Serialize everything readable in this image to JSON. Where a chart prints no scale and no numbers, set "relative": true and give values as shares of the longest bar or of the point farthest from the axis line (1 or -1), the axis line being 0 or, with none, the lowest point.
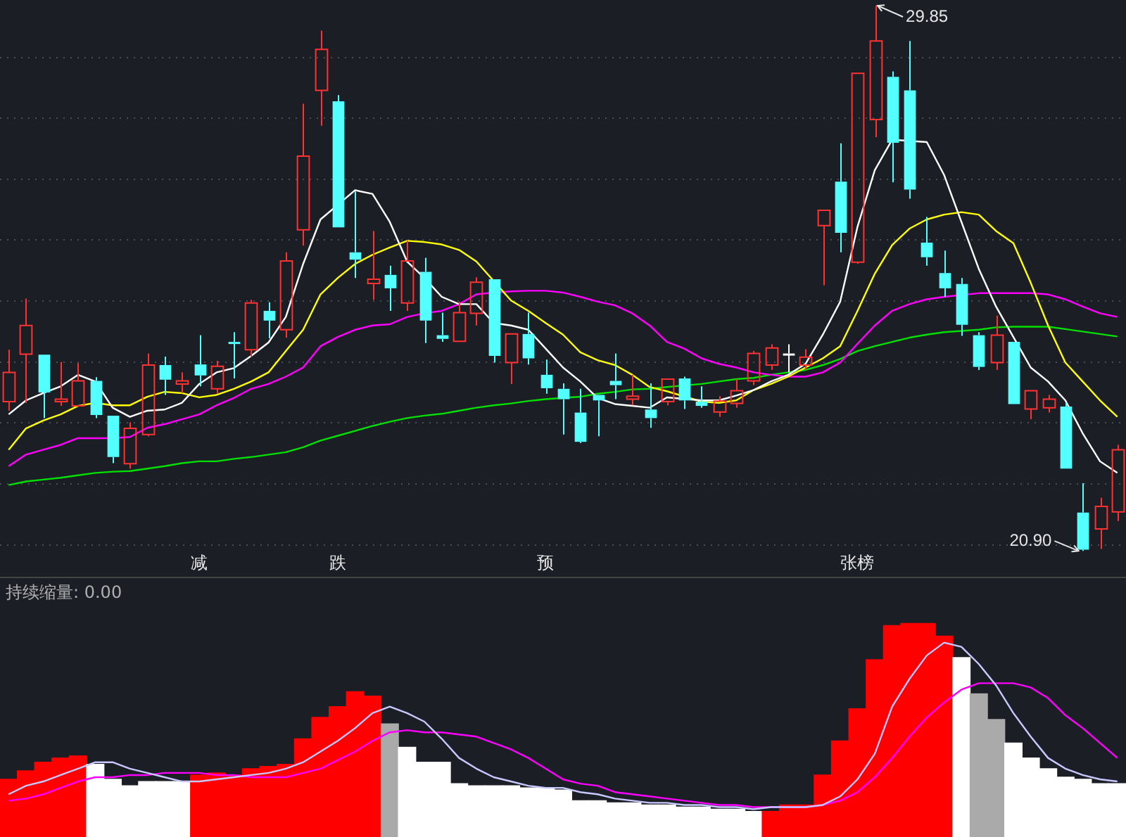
{
  "chart_data": [
    {
      "type": "candlestick",
      "categories": [
        null,
        null,
        null,
        null,
        null,
        null,
        null,
        null,
        null,
        null,
        null,
        "减",
        null,
        null,
        null,
        null,
        null,
        null,
        null,
        "跌",
        null,
        null,
        null,
        null,
        null,
        null,
        null,
        null,
        null,
        null,
        null,
        "预",
        null,
        null,
        null,
        null,
        null,
        null,
        null,
        null,
        null,
        null,
        null,
        null,
        null,
        null,
        null,
        null,
        null,
        "张榜",
        null,
        null,
        null,
        null,
        null,
        null,
        null,
        null,
        null,
        null,
        null,
        null,
        null,
        null,
        null
      ],
      "ohlc": [
        [
          23.35,
          24.2,
          23.2,
          23.83
        ],
        [
          24.13,
          25.04,
          23.33,
          24.6
        ],
        [
          24.12,
          24.12,
          23.08,
          23.5
        ],
        [
          23.35,
          24.0,
          23.28,
          23.39
        ],
        [
          23.28,
          23.98,
          23.28,
          23.69
        ],
        [
          23.69,
          23.75,
          23.08,
          23.13
        ],
        [
          23.12,
          23.12,
          22.34,
          22.44
        ],
        [
          22.33,
          23.01,
          22.25,
          22.91
        ],
        [
          22.81,
          24.14,
          22.78,
          23.95
        ],
        [
          23.95,
          24.09,
          23.46,
          23.71
        ],
        [
          23.64,
          23.83,
          23.49,
          23.69
        ],
        [
          23.96,
          24.44,
          23.6,
          23.78
        ],
        [
          23.56,
          24.02,
          23.48,
          23.93
        ],
        [
          24.33,
          24.49,
          23.73,
          24.31
        ],
        [
          24.2,
          25.02,
          24.09,
          24.97
        ],
        [
          24.84,
          24.98,
          24.39,
          24.68
        ],
        [
          24.53,
          25.8,
          24.4,
          25.66
        ],
        [
          26.17,
          28.24,
          25.91,
          27.38
        ],
        [
          28.46,
          29.44,
          27.88,
          29.13
        ],
        [
          28.28,
          28.38,
          26.21,
          26.21
        ],
        [
          25.8,
          26.8,
          25.38,
          25.68
        ],
        [
          25.29,
          26.15,
          25.02,
          25.36
        ],
        [
          25.43,
          25.58,
          24.84,
          25.21
        ],
        [
          24.97,
          25.99,
          24.84,
          25.66
        ],
        [
          25.48,
          25.71,
          24.31,
          24.68
        ],
        [
          24.44,
          24.81,
          24.33,
          24.38
        ],
        [
          24.34,
          24.99,
          24.34,
          24.81
        ],
        [
          24.8,
          25.39,
          24.6,
          25.31
        ],
        [
          25.36,
          25.36,
          23.99,
          24.1
        ],
        [
          23.99,
          24.46,
          23.64,
          24.46
        ],
        [
          24.46,
          24.81,
          23.96,
          24.06
        ],
        [
          23.79,
          24.04,
          23.48,
          23.57
        ],
        [
          23.56,
          23.65,
          22.81,
          23.39
        ],
        [
          23.17,
          23.56,
          22.67,
          22.69
        ],
        [
          23.46,
          23.46,
          22.78,
          23.37
        ],
        [
          23.69,
          24.14,
          23.39,
          23.62
        ],
        [
          23.39,
          23.79,
          23.29,
          23.44
        ],
        [
          23.22,
          23.65,
          22.92,
          23.08
        ],
        [
          23.35,
          23.72,
          23.29,
          23.72
        ],
        [
          23.73,
          23.76,
          23.23,
          23.37
        ],
        [
          23.35,
          23.6,
          23.25,
          23.28
        ],
        [
          23.18,
          23.44,
          23.1,
          23.36
        ],
        [
          23.32,
          23.72,
          23.25,
          23.53
        ],
        [
          23.69,
          24.18,
          23.62,
          24.14
        ],
        [
          23.95,
          24.29,
          23.87,
          24.23
        ],
        [
          24.14,
          24.29,
          23.83,
          24.13
        ],
        [
          23.95,
          24.21,
          23.87,
          24.08
        ],
        [
          26.24,
          26.49,
          25.26,
          26.49
        ],
        [
          26.96,
          27.59,
          25.8,
          26.12
        ],
        [
          25.64,
          28.74,
          25.61,
          28.74
        ],
        [
          27.98,
          29.85,
          27.69,
          29.27
        ],
        [
          28.68,
          28.77,
          26.95,
          27.6
        ],
        [
          28.46,
          29.27,
          26.68,
          26.83
        ],
        [
          25.96,
          26.38,
          25.58,
          25.72
        ],
        [
          25.46,
          25.83,
          25.07,
          25.21
        ],
        [
          25.28,
          25.38,
          24.43,
          24.61
        ],
        [
          24.44,
          24.49,
          23.87,
          23.92
        ],
        [
          23.99,
          24.76,
          23.87,
          24.44
        ],
        [
          24.33,
          24.33,
          23.31,
          23.31
        ],
        [
          23.23,
          23.53,
          23.06,
          23.53
        ],
        [
          23.25,
          23.46,
          23.17,
          23.39
        ],
        [
          23.27,
          23.33,
          22.25,
          22.25
        ],
        [
          21.53,
          22.01,
          20.9,
          20.92
        ],
        [
          21.26,
          21.77,
          20.93,
          21.63
        ],
        [
          21.54,
          22.64,
          21.39,
          22.56
        ]
      ],
      "colors": [
        "#ff3232",
        "#ff3232",
        "#54ffff",
        "#ff3232",
        "#ff3232",
        "#54ffff",
        "#54ffff",
        "#ff3232",
        "#ff3232",
        "#54ffff",
        "#ff3232",
        "#54ffff",
        "#ff3232",
        "#54ffff",
        "#ff3232",
        "#54ffff",
        "#ff3232",
        "#ff3232",
        "#ff3232",
        "#54ffff",
        "#54ffff",
        "#ff3232",
        "#54ffff",
        "#ff3232",
        "#54ffff",
        "#54ffff",
        "#ff3232",
        "#ff3232",
        "#54ffff",
        "#ff3232",
        "#54ffff",
        "#54ffff",
        "#54ffff",
        "#54ffff",
        "#54ffff",
        "#54ffff",
        "#ff3232",
        "#54ffff",
        "#ff3232",
        "#54ffff",
        "#54ffff",
        "#ff3232",
        "#ff3232",
        "#ff3232",
        "#ff3232",
        "#ffffff",
        "#ff3232",
        "#ff3232",
        "#54ffff",
        "#ff3232",
        "#ff3232",
        "#54ffff",
        "#54ffff",
        "#54ffff",
        "#54ffff",
        "#54ffff",
        "#54ffff",
        "#ff3232",
        "#54ffff",
        "#ff3232",
        "#ff3232",
        "#54ffff",
        "#54ffff",
        "#ff3232",
        "#ff3232"
      ],
      "series": [
        {
          "type": "line",
          "color": "#ffffff",
          "values": [
            23.14,
            23.37,
            23.49,
            23.6,
            23.79,
            23.68,
            23.25,
            23.1,
            23.2,
            23.22,
            23.33,
            23.64,
            23.83,
            23.9,
            24.1,
            24.32,
            24.74,
            25.61,
            26.34,
            null,
            26.82,
            26.76,
            26.3,
            25.65,
            25.38,
            25.07,
            24.95,
            24.95,
            24.64,
            24.6,
            24.53,
            24.22,
            23.91,
            23.68,
            23.41,
            23.31,
            23.28,
            23.25,
            23.42,
            null,
            23.37,
            23.37,
            23.45,
            23.54,
            23.68,
            23.79,
            23.97,
            24.45,
            24.99,
            26.22,
            27.15,
            27.65,
            null,
            27.61,
            27.07,
            26.3,
            25.53,
            24.91,
            null,
            23.91,
            23.68,
            23.37,
            22.83,
            22.37,
            22.18
          ]
        },
        {
          "type": "line",
          "color": "#ffff00",
          "values": [
            22.56,
            22.91,
            23.04,
            23.14,
            23.28,
            23.33,
            23.29,
            23.29,
            23.43,
            23.51,
            23.49,
            23.42,
            23.46,
            23.56,
            23.68,
            23.83,
            24.18,
            24.53,
            25.11,
            25.38,
            25.61,
            25.76,
            25.88,
            25.99,
            25.97,
            25.93,
            25.84,
            25.65,
            null,
            25.01,
            24.84,
            24.64,
            24.45,
            24.16,
            24.03,
            23.95,
            23.79,
            23.59,
            23.52,
            null,
            23.35,
            23.33,
            23.37,
            23.54,
            23.64,
            23.76,
            23.91,
            24.06,
            24.26,
            24.84,
            25.45,
            25.92,
            26.19,
            26.34,
            26.42,
            26.46,
            26.42,
            26.15,
            25.95,
            25.3,
            24.6,
            23.99,
            23.68,
            23.37,
            23.1
          ]
        },
        {
          "type": "line",
          "color": "#ff00ff",
          "values": [
            22.29,
            22.48,
            22.56,
            22.64,
            22.75,
            22.75,
            22.75,
            22.77,
            22.92,
            22.98,
            23.06,
            23.14,
            23.29,
            23.41,
            23.56,
            23.64,
            23.76,
            23.91,
            24.26,
            24.41,
            24.53,
            24.6,
            24.62,
            24.74,
            24.8,
            24.84,
            24.95,
            25.11,
            25.14,
            25.16,
            25.17,
            25.17,
            25.14,
            25.07,
            24.99,
            24.93,
            24.8,
            24.6,
            24.33,
            24.22,
            24.06,
            23.97,
            23.91,
            23.83,
            23.79,
            23.76,
            23.76,
            23.83,
            23.99,
            24.3,
            24.6,
            24.84,
            24.95,
            25.03,
            25.07,
            null,
            25.13,
            25.13,
            25.13,
            25.13,
            25.11,
            25.03,
            24.91,
            24.8,
            24.74
          ]
        },
        {
          "type": "line",
          "color": "#00e000",
          "values": [
            21.98,
            22.04,
            22.07,
            22.1,
            22.14,
            22.18,
            22.2,
            22.21,
            22.25,
            22.29,
            22.34,
            22.37,
            22.37,
            22.41,
            22.44,
            22.48,
            22.52,
            22.6,
            22.71,
            22.79,
            22.87,
            22.95,
            23.02,
            23.08,
            23.12,
            23.15,
            23.2,
            23.25,
            23.29,
            23.32,
            23.36,
            23.39,
            23.41,
            23.43,
            23.48,
            23.51,
            23.55,
            23.56,
            23.59,
            null,
            23.64,
            23.68,
            23.72,
            23.74,
            23.79,
            23.83,
            23.87,
            23.95,
            24.05,
            24.18,
            24.26,
            24.33,
            24.4,
            24.45,
            24.49,
            24.51,
            24.53,
            24.57,
            24.58,
            24.58,
            24.58,
            24.54,
            24.5,
            24.46,
            24.42
          ]
        }
      ],
      "yticks": [
        {
          "value": 21,
          "label": null
        },
        {
          "value": 22,
          "label": null
        },
        {
          "value": 23,
          "label": null
        },
        {
          "value": 24,
          "label": null
        },
        {
          "value": 25,
          "label": null
        },
        {
          "value": 26,
          "label": null
        },
        {
          "value": 27,
          "label": null
        },
        {
          "value": 28,
          "label": null
        },
        {
          "value": 29,
          "label": null
        }
      ],
      "grid": "y",
      "tick_labels": "x",
      "marker": "none",
      "annotations": [
        "29.85",
        "20.90"
      ]
    },
    {
      "type": "bar",
      "title": "持续缩量: 0.00",
      "relative": true,
      "marker": "none",
      "categories": [
        null,
        null,
        null,
        null,
        null,
        null,
        null,
        null,
        null,
        null,
        null,
        null,
        null,
        null,
        null,
        null,
        null,
        null,
        null,
        null,
        null,
        null,
        null,
        null,
        null,
        null,
        null,
        null,
        null,
        null,
        null,
        null,
        null,
        null,
        null,
        null,
        null,
        null,
        null,
        null,
        null,
        null,
        null,
        null,
        null,
        null,
        null,
        null,
        null,
        null,
        null,
        null,
        null,
        null,
        null,
        null,
        null,
        null,
        null,
        null,
        null,
        null,
        null,
        null,
        null
      ],
      "values": [
        0.27,
        0.31,
        0.35,
        0.37,
        0.38,
        0.34,
        0.27,
        0.24,
        0.26,
        0.26,
        0.26,
        0.29,
        0.3,
        0.29,
        0.32,
        0.33,
        0.34,
        0.46,
        0.56,
        0.61,
        0.68,
        0.66,
        0.53,
        0.42,
        0.35,
        0.35,
        0.25,
        0.24,
        0.24,
        0.24,
        0.23,
        0.23,
        0.22,
        0.17,
        0.17,
        0.16,
        0.16,
        0.15,
        0.15,
        0.14,
        0.14,
        0.13,
        0.13,
        0.12,
        0.12,
        0.15,
        0.15,
        0.29,
        0.45,
        0.6,
        0.83,
        0.99,
        1,
        1,
        0.94,
        0.84,
        0.67,
        0.55,
        0.44,
        0.37,
        0.32,
        0.28,
        0.27,
        0.25,
        0.25
      ],
      "colors": [
        "#ff0000",
        "#ff0000",
        "#ff0000",
        "#ff0000",
        "#ff0000",
        "#ffffff",
        "#ffffff",
        "#ffffff",
        "#ffffff",
        "#ffffff",
        "#ffffff",
        "#ff0000",
        "#ff0000",
        "#ff0000",
        "#ff0000",
        "#ff0000",
        "#ff0000",
        "#ff0000",
        "#ff0000",
        "#ff0000",
        "#ff0000",
        "#ff0000",
        "#aaaaaa",
        "#ffffff",
        "#ffffff",
        "#ffffff",
        "#ffffff",
        "#ffffff",
        "#ffffff",
        "#ffffff",
        "#ffffff",
        "#ffffff",
        "#ffffff",
        "#ffffff",
        "#ffffff",
        "#ffffff",
        "#ffffff",
        "#ffffff",
        "#ffffff",
        "#ffffff",
        "#ffffff",
        "#ffffff",
        "#ffffff",
        "#ffffff",
        "#ff0000",
        "#ff0000",
        "#ff0000",
        "#ff0000",
        "#ff0000",
        "#ff0000",
        "#ff0000",
        "#ff0000",
        "#ff0000",
        "#ff0000",
        "#ff0000",
        "#ffffff",
        "#aaaaaa",
        "#aaaaaa",
        "#ffffff",
        "#ffffff",
        "#ffffff",
        "#ffffff",
        "#ffffff",
        "#ffffff",
        "#ffffff"
      ],
      "series": [
        {
          "type": "line",
          "color": "#c8c8ff",
          "values": [
            0.2,
            0.24,
            0.26,
            0.29,
            0.32,
            0.35,
            0.35,
            0.32,
            0.3,
            0.28,
            0.26,
            0.26,
            0.27,
            0.28,
            0.29,
            0.3,
            0.32,
            0.35,
            0.4,
            0.45,
            0.51,
            0.58,
            0.61,
            0.58,
            0.54,
            0.46,
            0.37,
            0.32,
            0.28,
            0.26,
            0.24,
            0.23,
            0.23,
            0.21,
            0.2,
            0.18,
            0.17,
            0.16,
            0.16,
            0.15,
            0.15,
            0.14,
            0.14,
            0.13,
            0.14,
            0.14,
            0.14,
            0.15,
            0.19,
            0.27,
            0.39,
            0.61,
            0.74,
            0.85,
            0.91,
            0.89,
            0.81,
            0.71,
            0.58,
            0.47,
            0.37,
            0.32,
            0.29,
            0.27,
            0.26
          ]
        },
        {
          "type": "line",
          "color": "#ff00ff",
          "values": [
            0.17,
            0.18,
            0.2,
            0.23,
            0.26,
            0.28,
            0.28,
            0.29,
            0.29,
            0.3,
            0.3,
            0.3,
            0.29,
            0.29,
            0.28,
            0.28,
            0.28,
            0.3,
            0.32,
            0.36,
            0.4,
            0.45,
            0.49,
            0.5,
            0.49,
            0.49,
            0.48,
            0.47,
            0.44,
            0.41,
            0.37,
            0.32,
            0.27,
            0.25,
            0.24,
            0.21,
            0.2,
            0.19,
            0.18,
            0.17,
            0.16,
            0.15,
            0.15,
            0.14,
            0.14,
            null,
            0.14,
            0.15,
            0.17,
            0.21,
            0.28,
            0.37,
            0.47,
            0.56,
            0.63,
            0.69,
            0.72,
            0.72,
            0.72,
            0.7,
            0.65,
            0.57,
            0.51,
            0.44,
            0.37
          ]
        }
      ]
    }
  ]
}
